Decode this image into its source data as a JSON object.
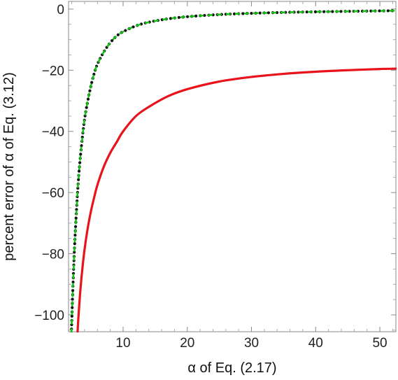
{
  "chart_data": {
    "type": "line",
    "title": "",
    "xlabel": "α of Eq. (2.17)",
    "ylabel": "percent error of α of Eq. (3.12)",
    "xlim": [
      1.5,
      52.5
    ],
    "ylim": [
      -105.5,
      2.5
    ],
    "x_ticks": [
      10,
      20,
      30,
      40,
      50
    ],
    "y_ticks": [
      0,
      -20,
      -40,
      -60,
      -80,
      -100
    ],
    "x_tick_labels": [
      "10",
      "20",
      "30",
      "40",
      "50"
    ],
    "y_tick_labels": [
      "0",
      "−20",
      "−40",
      "−60",
      "−80",
      "−100"
    ],
    "grid": false,
    "legend": "none",
    "series": [
      {
        "color": "#e8131b",
        "style": "solid",
        "x": [
          2.9,
          3.0,
          3.3,
          3.6,
          4.0,
          4.5,
          5.0,
          5.5,
          6.0,
          7.0,
          8.0,
          9.0,
          10,
          12,
          14,
          17,
          20,
          25,
          30,
          35,
          40,
          45,
          50,
          52.5
        ],
        "y": [
          -106,
          -102,
          -93,
          -86,
          -78.5,
          -71.5,
          -66,
          -61.5,
          -57.5,
          -51.5,
          -47,
          -43.5,
          -40,
          -35,
          -32,
          -28.5,
          -26.2,
          -23.7,
          -22.2,
          -21.2,
          -20.5,
          -20.0,
          -19.6,
          -19.5
        ]
      },
      {
        "color": "#111111",
        "style": "dotted",
        "x": [
          1.95,
          2.0,
          2.2,
          2.5,
          3.0,
          3.5,
          4.0,
          4.5,
          5.0,
          5.5,
          6.0,
          7.0,
          8.0,
          9.0,
          10,
          12,
          14,
          17,
          20,
          25,
          30,
          35,
          40,
          45,
          50,
          52.5
        ],
        "y": [
          -106,
          -102,
          -90,
          -75,
          -57,
          -45,
          -36,
          -30,
          -25,
          -21,
          -18,
          -14,
          -11,
          -8.8,
          -7.4,
          -5.5,
          -4.3,
          -3.2,
          -2.5,
          -1.8,
          -1.4,
          -1.1,
          -0.9,
          -0.75,
          -0.6,
          -0.55
        ]
      },
      {
        "color": "#17c417",
        "style": "dashed",
        "x": [
          1.95,
          2.0,
          2.2,
          2.5,
          3.0,
          3.5,
          4.0,
          4.5,
          5.0,
          5.5,
          6.0,
          7.0,
          8.0,
          9.0,
          10,
          12,
          14,
          17,
          20,
          25,
          30,
          35,
          40,
          45,
          50,
          52.5
        ],
        "y": [
          -106,
          -102,
          -90,
          -75,
          -57,
          -45,
          -36,
          -30,
          -25,
          -21,
          -18,
          -14,
          -11,
          -8.8,
          -7.4,
          -5.5,
          -4.3,
          -3.2,
          -2.5,
          -1.8,
          -1.4,
          -1.1,
          -0.9,
          -0.75,
          -0.6,
          -0.55
        ]
      }
    ]
  }
}
